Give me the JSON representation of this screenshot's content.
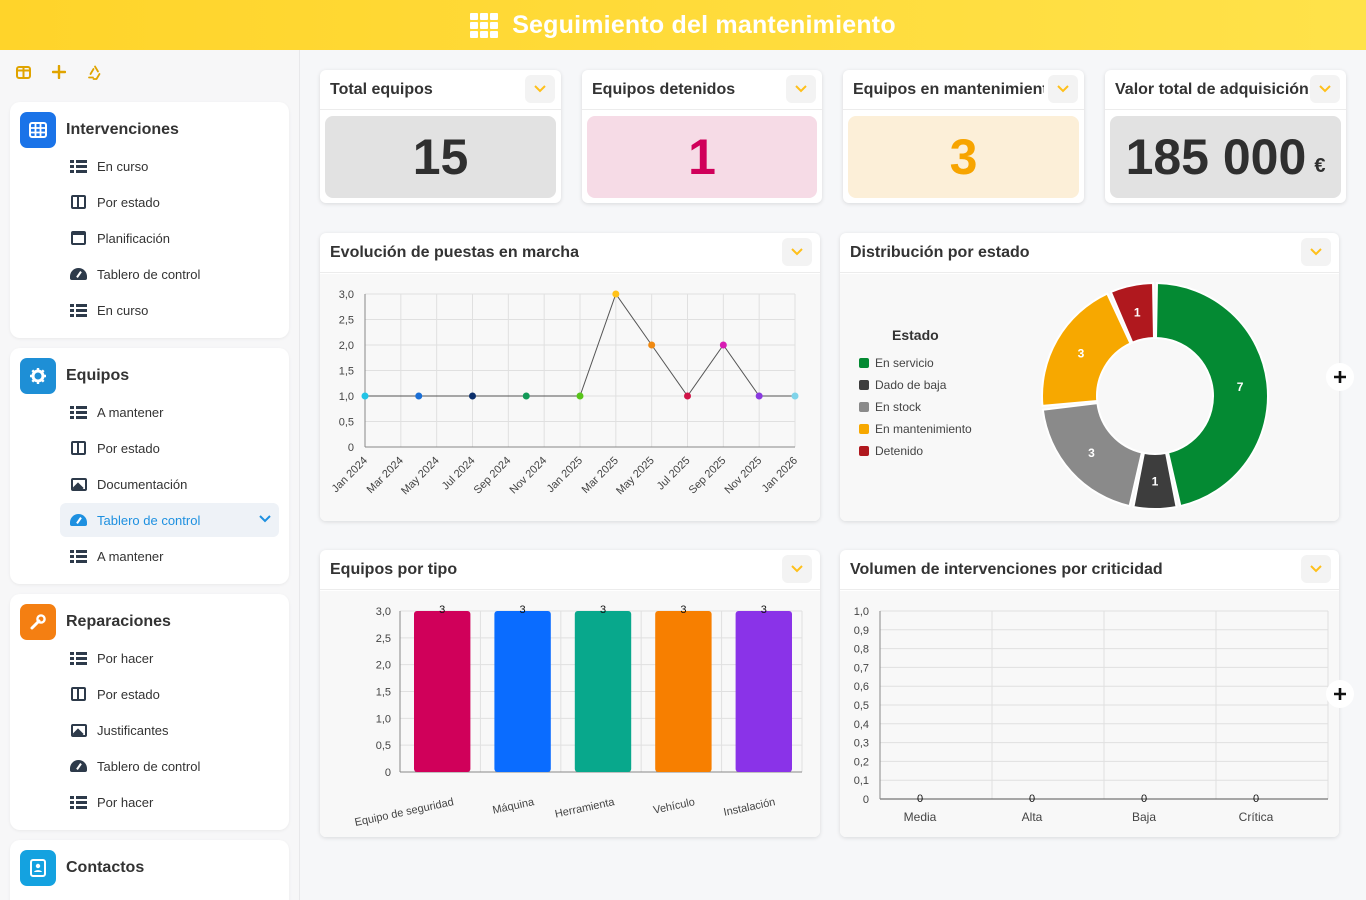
{
  "header": {
    "title": "Seguimiento del mantenimiento"
  },
  "sidebar": {
    "sections": [
      {
        "title": "Intervenciones",
        "color": "#1a73e8",
        "items": [
          "En curso",
          "Por estado",
          "Planificación",
          "Tablero de control",
          "En curso"
        ]
      },
      {
        "title": "Equipos",
        "color": "#1e8fd6",
        "items": [
          "A mantener",
          "Por estado",
          "Documentación",
          "Tablero de control",
          "A mantener"
        ]
      },
      {
        "title": "Reparaciones",
        "color": "#f47f12",
        "items": [
          "Por hacer",
          "Por estado",
          "Justificantes",
          "Tablero de control",
          "Por hacer"
        ]
      },
      {
        "title": "Contactos",
        "color": "#14a2e0",
        "items": []
      }
    ]
  },
  "kpis": [
    {
      "title": "Total equipos",
      "value": "15",
      "bg": "#e2e2e2",
      "color": "#2f2f2f"
    },
    {
      "title": "Equipos detenidos",
      "value": "1",
      "bg": "#f6dbe6",
      "color": "#d0005a"
    },
    {
      "title": "Equipos en mantenimient",
      "value": "3",
      "bg": "#fcefd8",
      "color": "#f7a400"
    },
    {
      "title": "Valor total de adquisición",
      "value": "185 000",
      "unit": "€",
      "bg": "#e2e2e2",
      "color": "#2f2f2f"
    }
  ],
  "panels": {
    "line": "Evolución de puestas en marcha",
    "donut": "Distribución por estado",
    "bar": "Equipos por tipo",
    "crit": "Volumen de intervenciones por criticidad"
  },
  "chart_data": [
    {
      "type": "line",
      "title": "Evolución de puestas en marcha",
      "x": [
        "Jan 2024",
        "Mar 2024",
        "May 2024",
        "Jul 2024",
        "Sep 2024",
        "Nov 2024",
        "Jan 2025",
        "Mar 2025",
        "May 2025",
        "Jul 2025",
        "Sep 2025",
        "Nov 2025",
        "Jan 2026"
      ],
      "points": [
        {
          "month": 0,
          "y": 1,
          "color": "#22c4e6"
        },
        {
          "month": 3,
          "y": 1,
          "color": "#1a6fd6"
        },
        {
          "month": 6,
          "y": 1,
          "color": "#0b2f6b"
        },
        {
          "month": 9,
          "y": 1,
          "color": "#139a58"
        },
        {
          "month": 12,
          "y": 1,
          "color": "#58c41a"
        },
        {
          "month": 14,
          "y": 3,
          "color": "#ffc21a"
        },
        {
          "month": 16,
          "y": 2,
          "color": "#f08a12"
        },
        {
          "month": 18,
          "y": 1,
          "color": "#d01447"
        },
        {
          "month": 20,
          "y": 2,
          "color": "#d81cb4"
        },
        {
          "month": 22,
          "y": 1,
          "color": "#8a3ae0"
        },
        {
          "month": 24,
          "y": 1,
          "color": "#7fd4ea"
        }
      ],
      "ylim": [
        0,
        3
      ],
      "yticks": [
        "0",
        "0,5",
        "1,0",
        "1,5",
        "2,0",
        "2,5",
        "3,0"
      ],
      "grid": true
    },
    {
      "type": "pie",
      "title": "Distribución por estado",
      "legend_title": "Estado",
      "legend_position": "left",
      "slices": [
        {
          "name": "En servicio",
          "value": 7,
          "color": "#048a33"
        },
        {
          "name": "Dado de baja",
          "value": 1,
          "color": "#3d3d3d"
        },
        {
          "name": "En stock",
          "value": 3,
          "color": "#8a8a8a"
        },
        {
          "name": "En mantenimiento",
          "value": 3,
          "color": "#f7a800"
        },
        {
          "name": "Detenido",
          "value": 1,
          "color": "#b0181e"
        }
      ]
    },
    {
      "type": "bar",
      "title": "Equipos por tipo",
      "categories": [
        "Equipo de seguridad",
        "Máquina",
        "Herramienta",
        "Vehículo",
        "Instalación"
      ],
      "values": [
        3,
        3,
        3,
        3,
        3
      ],
      "colors": [
        "#d0005a",
        "#0a6cff",
        "#08a88c",
        "#f77f00",
        "#8a33e8"
      ],
      "ylim": [
        0,
        3
      ],
      "yticks": [
        "0",
        "0,5",
        "1,0",
        "1,5",
        "2,0",
        "2,5",
        "3,0"
      ]
    },
    {
      "type": "bar",
      "title": "Volumen de intervenciones por criticidad",
      "categories": [
        "Media",
        "Alta",
        "Baja",
        "Crítica"
      ],
      "values": [
        0,
        0,
        0,
        0
      ],
      "ylim": [
        0,
        1
      ],
      "yticks": [
        "0",
        "0,1",
        "0,2",
        "0,3",
        "0,4",
        "0,5",
        "0,6",
        "0,7",
        "0,8",
        "0,9",
        "1,0"
      ]
    }
  ]
}
